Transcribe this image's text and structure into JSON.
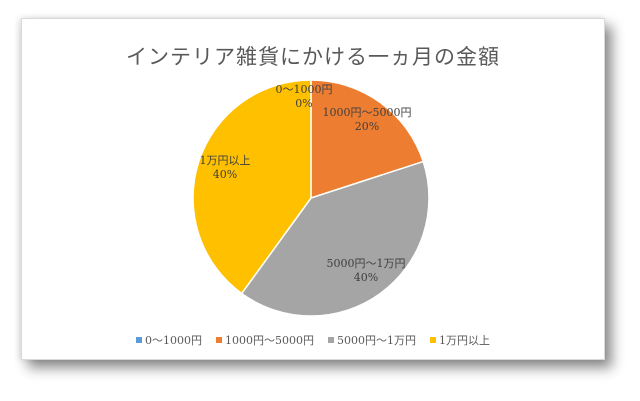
{
  "chart_data": {
    "type": "pie",
    "title": "インテリア雑貨にかける一ヵ月の金額",
    "categories": [
      "0～1000円",
      "1000円～5000円",
      "5000円～1万円",
      "1万円以上"
    ],
    "values": [
      0,
      20,
      40,
      40
    ],
    "value_labels": [
      "0%",
      "20%",
      "40%",
      "40%"
    ],
    "colors": [
      "#5b9bd5",
      "#ed7d31",
      "#a5a5a5",
      "#ffc000"
    ],
    "legend_position": "bottom"
  }
}
